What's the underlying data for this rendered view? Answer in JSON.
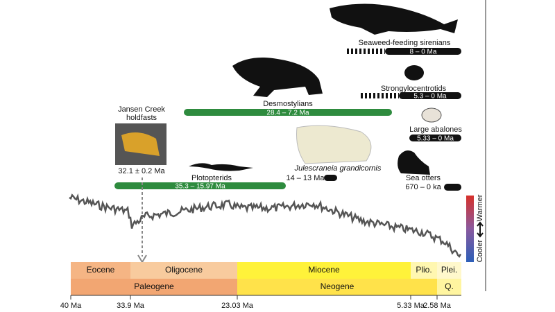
{
  "figure": {
    "time_axis": {
      "ticks": [
        "40 Ma",
        "33.9 Ma",
        "23.03 Ma",
        "5.33 Ma",
        "2.58 Ma"
      ]
    },
    "epochs": [
      "Eocene",
      "Oligocene",
      "Miocene",
      "Plio.",
      "Plei."
    ],
    "periods": [
      "Paleogene",
      "Neogene",
      "Q."
    ],
    "climate_legend": {
      "warm": "Warmer",
      "cool": "Cooler"
    },
    "lineages": [
      {
        "name": "Seaweed-feeding sirenians",
        "range": "8 – 0 Ma"
      },
      {
        "name": "Strongylocentrotids",
        "range": "5.3 – 0 Ma"
      },
      {
        "name": "Desmostylians",
        "range": "28.4 – 7.2 Ma"
      },
      {
        "name": "Large abalones",
        "range": "5.33 – 0 Ma"
      },
      {
        "name": "Plotopterids",
        "range": "35.3 – 15.97 Ma"
      },
      {
        "name": "Sea otters",
        "range": "670 – 0 ka"
      }
    ],
    "fossils": [
      {
        "name": [
          "Jansen Creek",
          "holdfasts"
        ],
        "age": "32.1 ± 0.2 Ma"
      },
      {
        "name": [
          "Julescraneia grandicornis"
        ],
        "age": "14 – 13 Ma"
      }
    ]
  }
}
